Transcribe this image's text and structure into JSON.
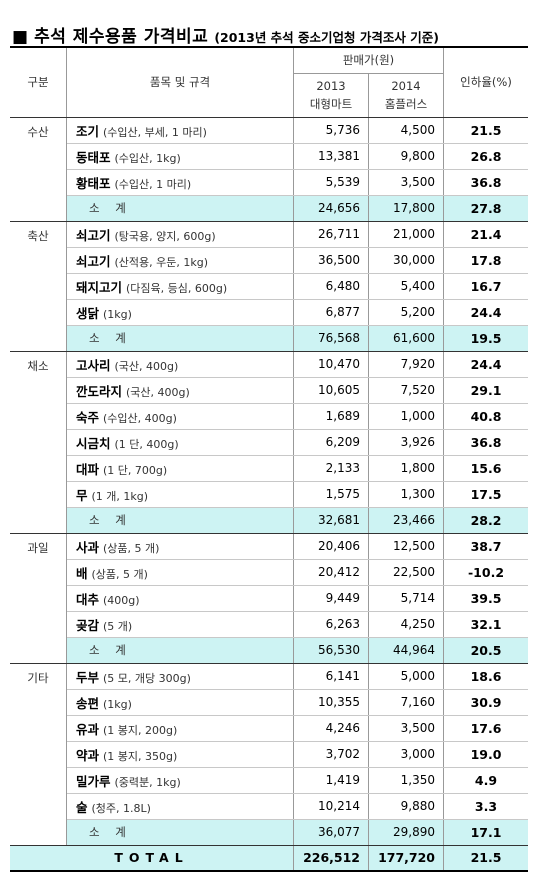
{
  "title": {
    "square": "■",
    "main": "추석 제수용품 가격비교",
    "sub": "(2013년 추석 중소기업청 가격조사 기준)"
  },
  "header": {
    "category": "구분",
    "item": "품목 및 규격",
    "price": "판매가(원)",
    "year1": "2013",
    "store1": "대형마트",
    "year2": "2014",
    "store2": "홈플러스",
    "rate": "인하율(%)"
  },
  "groups": [
    {
      "category": "수산",
      "items": [
        {
          "name": "조기",
          "spec": "(수입산, 부세, 1 마리)",
          "p2013": "5,736",
          "p2014": "4,500",
          "rate": "21.5"
        },
        {
          "name": "동태포",
          "spec": "(수입산, 1kg)",
          "p2013": "13,381",
          "p2014": "9,800",
          "rate": "26.8"
        },
        {
          "name": "황태포",
          "spec": "(수입산, 1 마리)",
          "p2013": "5,539",
          "p2014": "3,500",
          "rate": "36.8"
        }
      ],
      "subtotal": {
        "label": "소 계",
        "p2013": "24,656",
        "p2014": "17,800",
        "rate": "27.8"
      }
    },
    {
      "category": "축산",
      "items": [
        {
          "name": "쇠고기",
          "spec": "(탕국용, 양지, 600g)",
          "p2013": "26,711",
          "p2014": "21,000",
          "rate": "21.4"
        },
        {
          "name": "쇠고기",
          "spec": "(산적용, 우둔, 1kg)",
          "p2013": "36,500",
          "p2014": "30,000",
          "rate": "17.8"
        },
        {
          "name": "돼지고기",
          "spec": "(다짐육, 등심, 600g)",
          "p2013": "6,480",
          "p2014": "5,400",
          "rate": "16.7"
        },
        {
          "name": "생닭",
          "spec": "(1kg)",
          "p2013": "6,877",
          "p2014": "5,200",
          "rate": "24.4"
        }
      ],
      "subtotal": {
        "label": "소 계",
        "p2013": "76,568",
        "p2014": "61,600",
        "rate": "19.5"
      }
    },
    {
      "category": "채소",
      "items": [
        {
          "name": "고사리",
          "spec": "(국산, 400g)",
          "p2013": "10,470",
          "p2014": "7,920",
          "rate": "24.4"
        },
        {
          "name": "깐도라지",
          "spec": "(국산, 400g)",
          "p2013": "10,605",
          "p2014": "7,520",
          "rate": "29.1"
        },
        {
          "name": "숙주",
          "spec": "(수입산, 400g)",
          "p2013": "1,689",
          "p2014": "1,000",
          "rate": "40.8"
        },
        {
          "name": "시금치",
          "spec": "(1 단, 400g)",
          "p2013": "6,209",
          "p2014": "3,926",
          "rate": "36.8"
        },
        {
          "name": "대파",
          "spec": "(1 단, 700g)",
          "p2013": "2,133",
          "p2014": "1,800",
          "rate": "15.6"
        },
        {
          "name": "무",
          "spec": "(1 개, 1kg)",
          "p2013": "1,575",
          "p2014": "1,300",
          "rate": "17.5"
        }
      ],
      "subtotal": {
        "label": "소 계",
        "p2013": "32,681",
        "p2014": "23,466",
        "rate": "28.2"
      }
    },
    {
      "category": "과일",
      "items": [
        {
          "name": "사과",
          "spec": "(상품, 5 개)",
          "p2013": "20,406",
          "p2014": "12,500",
          "rate": "38.7"
        },
        {
          "name": "배",
          "spec": "(상품, 5 개)",
          "p2013": "20,412",
          "p2014": "22,500",
          "rate": "-10.2"
        },
        {
          "name": "대추",
          "spec": "(400g)",
          "p2013": "9,449",
          "p2014": "5,714",
          "rate": "39.5"
        },
        {
          "name": "곶감",
          "spec": "(5 개)",
          "p2013": "6,263",
          "p2014": "4,250",
          "rate": "32.1"
        }
      ],
      "subtotal": {
        "label": "소 계",
        "p2013": "56,530",
        "p2014": "44,964",
        "rate": "20.5"
      }
    },
    {
      "category": "기타",
      "items": [
        {
          "name": "두부",
          "spec": "(5 모, 개당 300g)",
          "p2013": "6,141",
          "p2014": "5,000",
          "rate": "18.6"
        },
        {
          "name": "송편",
          "spec": "(1kg)",
          "p2013": "10,355",
          "p2014": "7,160",
          "rate": "30.9"
        },
        {
          "name": "유과",
          "spec": "(1 봉지, 200g)",
          "p2013": "4,246",
          "p2014": "3,500",
          "rate": "17.6"
        },
        {
          "name": "약과",
          "spec": "(1 봉지, 350g)",
          "p2013": "3,702",
          "p2014": "3,000",
          "rate": "19.0"
        },
        {
          "name": "밀가루",
          "spec": "(중력분, 1kg)",
          "p2013": "1,419",
          "p2014": "1,350",
          "rate": "4.9"
        },
        {
          "name": "술",
          "spec": "(청주, 1.8L)",
          "p2013": "10,214",
          "p2014": "9,880",
          "rate": "3.3"
        }
      ],
      "subtotal": {
        "label": "소 계",
        "p2013": "36,077",
        "p2014": "29,890",
        "rate": "17.1"
      }
    }
  ],
  "total": {
    "label": "TOTAL",
    "p2013": "226,512",
    "p2014": "177,720",
    "rate": "21.5"
  }
}
